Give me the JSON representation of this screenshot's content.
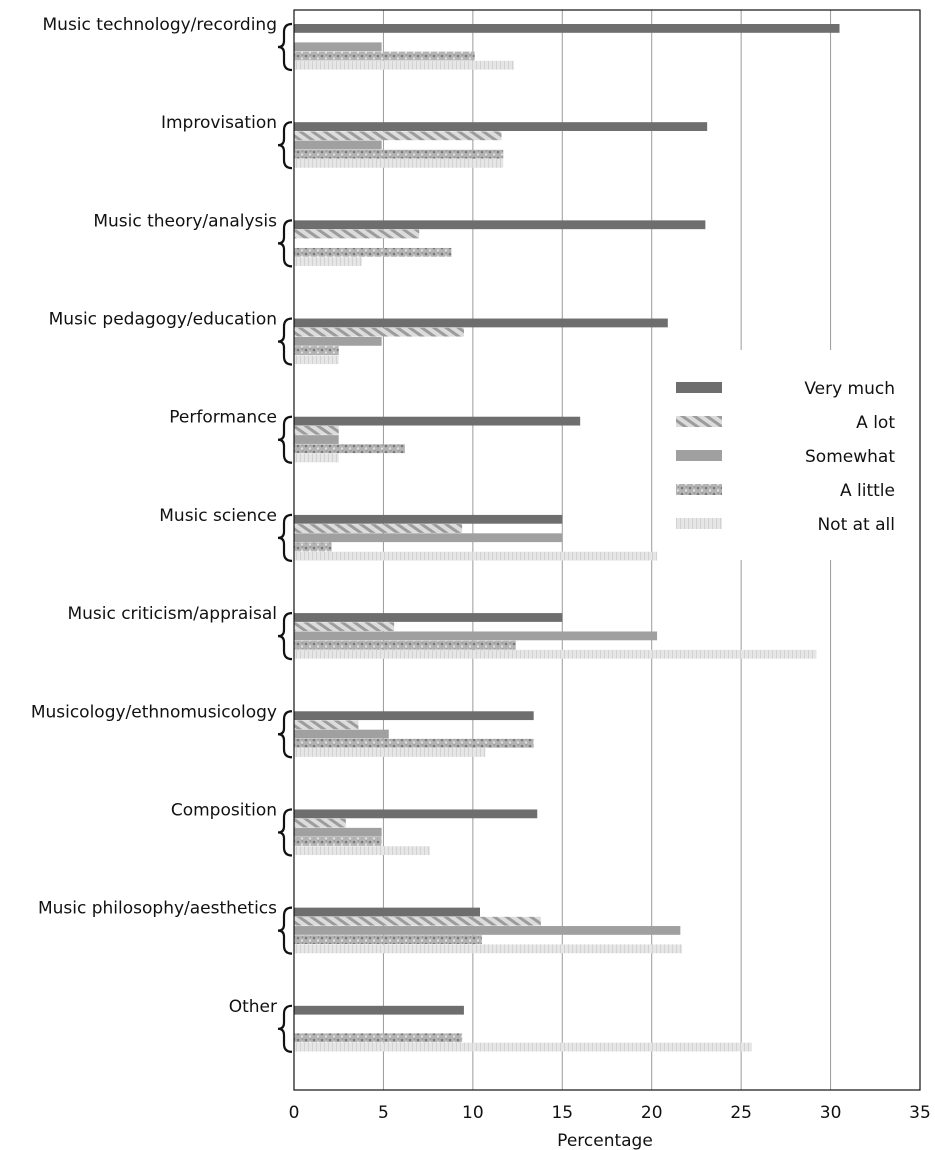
{
  "chart_data": {
    "type": "bar",
    "orientation": "horizontal",
    "xlabel": "Percentage",
    "xlim": [
      0,
      35
    ],
    "xticks": [
      0,
      5,
      10,
      15,
      20,
      25,
      30,
      35
    ],
    "grid": true,
    "legend_position": "right",
    "categories": [
      "Music technology/recording",
      "Improvisation",
      "Music theory/analysis",
      "Music pedagogy/education",
      "Performance",
      "Music science",
      "Music criticism/appraisal",
      "Musicology/ethnomusicology",
      "Composition",
      "Music philosophy/aesthetics",
      "Other"
    ],
    "series": [
      {
        "name": "Very much",
        "color": "#6e6e6e",
        "pattern": "solid",
        "values": [
          30.5,
          23.1,
          23.0,
          20.9,
          16.0,
          15.0,
          15.0,
          13.4,
          13.6,
          10.4,
          9.5
        ]
      },
      {
        "name": "A lot",
        "color": "#c8c8c8",
        "pattern": "diagonal",
        "values": [
          0,
          11.6,
          7.0,
          9.5,
          2.5,
          9.4,
          5.6,
          3.6,
          2.9,
          13.8,
          0
        ]
      },
      {
        "name": "Somewhat",
        "color": "#a0a0a0",
        "pattern": "solid",
        "values": [
          4.9,
          4.9,
          0,
          4.9,
          2.5,
          15.0,
          20.3,
          5.3,
          4.9,
          21.6,
          0
        ]
      },
      {
        "name": "A little",
        "color": "#a8a8a8",
        "pattern": "speckle",
        "values": [
          10.1,
          11.7,
          8.8,
          2.5,
          6.2,
          2.1,
          12.4,
          13.4,
          4.9,
          10.5,
          9.4
        ]
      },
      {
        "name": "Not at all",
        "color": "#e0e0e0",
        "pattern": "fine",
        "values": [
          12.3,
          11.7,
          3.8,
          2.5,
          2.5,
          20.3,
          29.2,
          10.7,
          7.6,
          21.7,
          25.6
        ]
      }
    ]
  }
}
